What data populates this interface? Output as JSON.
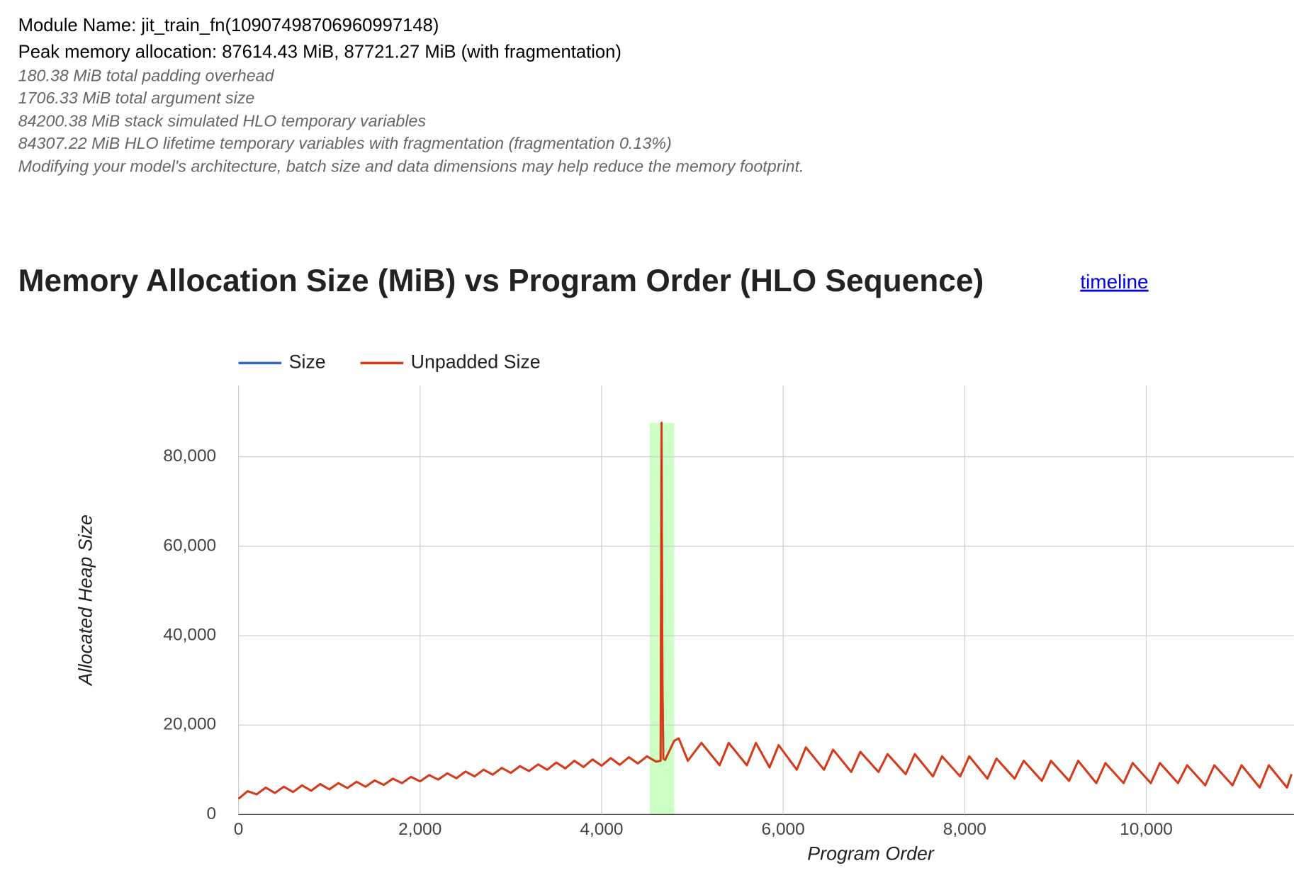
{
  "header": {
    "module_name": "Module Name: jit_train_fn(10907498706960997148)",
    "peak": "Peak memory allocation: 87614.43 MiB, 87721.27 MiB (with fragmentation)",
    "notes": [
      "180.38 MiB total padding overhead",
      "1706.33 MiB total argument size",
      "84200.38 MiB stack simulated HLO temporary variables",
      "84307.22 MiB HLO lifetime temporary variables with fragmentation (fragmentation 0.13%)",
      "Modifying your model's architecture, batch size and data dimensions may help reduce the memory footprint."
    ]
  },
  "section": {
    "title": "Memory Allocation Size (MiB) vs Program Order (HLO Sequence)",
    "link": "timeline"
  },
  "chart_data": {
    "type": "line",
    "x_label": "Program Order",
    "y_label": "Allocated Heap Size",
    "xlim": [
      0,
      11627
    ],
    "ylim": [
      0,
      96000
    ],
    "xticks": [
      0,
      {
        "value": 2000,
        "label": "2,000"
      },
      {
        "value": 4000,
        "label": "4,000"
      },
      {
        "value": 6000,
        "label": "6,000"
      },
      {
        "value": 8000,
        "label": "8,000"
      },
      {
        "value": 10000,
        "label": "10,000"
      }
    ],
    "yticks": [
      0,
      {
        "value": 20000,
        "label": "20,000"
      },
      {
        "value": 40000,
        "label": "40,000"
      },
      {
        "value": 60000,
        "label": "60,000"
      },
      {
        "value": 80000,
        "label": "80,000"
      }
    ],
    "grid": true,
    "legend": "top",
    "highlight": {
      "x": [
        4530,
        4800
      ],
      "y": 87614,
      "color": "#ccffc4"
    },
    "x": [
      0,
      100,
      200,
      300,
      400,
      500,
      600,
      700,
      800,
      900,
      1000,
      1100,
      1200,
      1300,
      1400,
      1500,
      1600,
      1700,
      1800,
      1900,
      2000,
      2100,
      2200,
      2300,
      2400,
      2500,
      2600,
      2700,
      2800,
      2900,
      3000,
      3100,
      3200,
      3300,
      3400,
      3500,
      3600,
      3700,
      3800,
      3900,
      4000,
      4100,
      4200,
      4300,
      4400,
      4500,
      4600,
      4650,
      4660,
      4670,
      4680,
      4700,
      4800,
      4850,
      4950,
      5100,
      5300,
      5400,
      5600,
      5700,
      5850,
      5950,
      6150,
      6250,
      6450,
      6550,
      6750,
      6850,
      7050,
      7150,
      7350,
      7450,
      7650,
      7750,
      7950,
      8050,
      8250,
      8350,
      8550,
      8650,
      8850,
      8950,
      9150,
      9250,
      9450,
      9550,
      9750,
      9850,
      10050,
      10150,
      10350,
      10450,
      10650,
      10750,
      10950,
      11050,
      11250,
      11350,
      11550,
      11600
    ],
    "series": [
      {
        "name": "Size",
        "color": "#3366cc",
        "values": [
          3500,
          5200,
          4500,
          6000,
          4800,
          6200,
          5000,
          6500,
          5300,
          6800,
          5600,
          7000,
          5900,
          7300,
          6200,
          7600,
          6600,
          8000,
          7000,
          8400,
          7400,
          8800,
          7800,
          9200,
          8100,
          9600,
          8500,
          10000,
          8900,
          10400,
          9300,
          10800,
          9700,
          11200,
          10000,
          11600,
          10300,
          12000,
          10600,
          12300,
          10900,
          12600,
          11100,
          12800,
          11400,
          13000,
          11800,
          12000,
          87614,
          30000,
          12500,
          12200,
          16500,
          17000,
          12000,
          16000,
          11000,
          16000,
          11000,
          16000,
          10500,
          15500,
          10000,
          15000,
          10000,
          14500,
          9500,
          14000,
          9500,
          13500,
          9000,
          13500,
          8500,
          13000,
          8500,
          13000,
          8000,
          12500,
          8000,
          12000,
          7500,
          12000,
          7500,
          12000,
          7000,
          11500,
          7000,
          11500,
          7000,
          11500,
          7000,
          11000,
          6500,
          11000,
          6500,
          11000,
          6000,
          11000,
          6000,
          9000
        ]
      },
      {
        "name": "Unpadded Size",
        "color": "#dc3912",
        "values": [
          3500,
          5200,
          4500,
          6000,
          4800,
          6200,
          5000,
          6500,
          5300,
          6800,
          5600,
          7000,
          5900,
          7300,
          6200,
          7600,
          6600,
          8000,
          7000,
          8400,
          7400,
          8800,
          7800,
          9200,
          8100,
          9600,
          8500,
          10000,
          8900,
          10400,
          9300,
          10800,
          9700,
          11200,
          10000,
          11600,
          10300,
          12000,
          10600,
          12300,
          10900,
          12600,
          11100,
          12800,
          11400,
          13000,
          11800,
          12000,
          87614,
          30000,
          12500,
          12200,
          16500,
          17000,
          12000,
          16000,
          11000,
          16000,
          11000,
          16000,
          10500,
          15500,
          10000,
          15000,
          10000,
          14500,
          9500,
          14000,
          9500,
          13500,
          9000,
          13500,
          8500,
          13000,
          8500,
          13000,
          8000,
          12500,
          8000,
          12000,
          7500,
          12000,
          7500,
          12000,
          7000,
          11500,
          7000,
          11500,
          7000,
          11500,
          7000,
          11000,
          6500,
          11000,
          6500,
          11000,
          6000,
          11000,
          6000,
          9000
        ]
      }
    ]
  }
}
